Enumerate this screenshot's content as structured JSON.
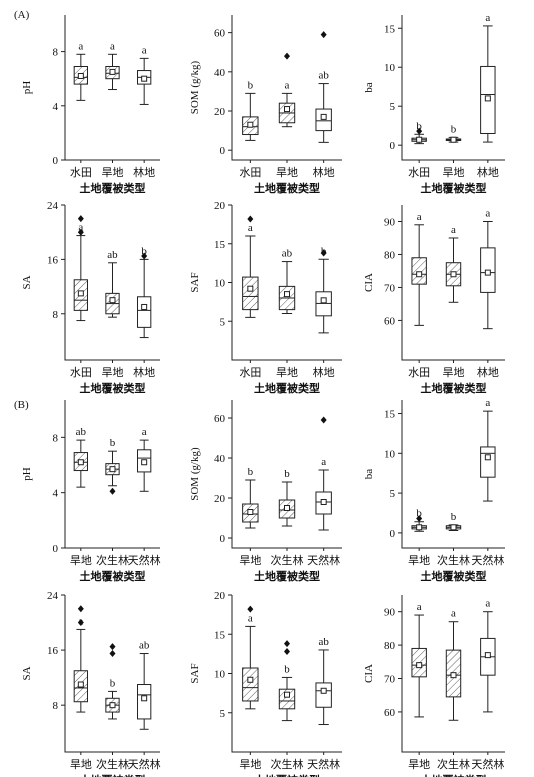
{
  "panel_labels": [
    "(A)",
    "(B)"
  ],
  "chart_data": [
    {
      "type": "box",
      "ylabel": "pH",
      "xlabel": "土地覆被类型",
      "categories": [
        "水田",
        "旱地",
        "林地"
      ],
      "ylim": [
        0,
        10.7
      ],
      "yticks": [
        0,
        4,
        8
      ],
      "boxes": [
        {
          "min": 4.4,
          "q1": 5.6,
          "median": 6.1,
          "q3": 6.9,
          "max": 7.8,
          "mean": 6.2,
          "outliers": [],
          "label": "a",
          "hatch": true
        },
        {
          "min": 5.2,
          "q1": 6.0,
          "median": 6.4,
          "q3": 6.9,
          "max": 7.8,
          "mean": 6.5,
          "outliers": [],
          "label": "a",
          "hatch": true
        },
        {
          "min": 4.1,
          "q1": 5.6,
          "median": 6.1,
          "q3": 6.6,
          "max": 7.5,
          "mean": 6.0,
          "outliers": [],
          "label": "a",
          "hatch": false
        }
      ]
    },
    {
      "type": "box",
      "ylabel": "SOM (g/kg)",
      "xlabel": "土地覆被类型",
      "categories": [
        "水田",
        "旱地",
        "林地"
      ],
      "ylim": [
        -5,
        69
      ],
      "yticks": [
        0,
        20,
        40,
        60
      ],
      "boxes": [
        {
          "min": 5,
          "q1": 8,
          "median": 12,
          "q3": 17,
          "max": 29,
          "mean": 13,
          "outliers": [],
          "label": "b",
          "hatch": true
        },
        {
          "min": 12,
          "q1": 14,
          "median": 19,
          "q3": 24,
          "max": 29,
          "mean": 21,
          "outliers": [
            48
          ],
          "label": "a",
          "hatch": true
        },
        {
          "min": 4,
          "q1": 10,
          "median": 15,
          "q3": 21,
          "max": 34,
          "mean": 17,
          "outliers": [
            59
          ],
          "label": "ab",
          "hatch": false
        }
      ]
    },
    {
      "type": "box",
      "ylabel": "ba",
      "xlabel": "土地覆被类型",
      "categories": [
        "水田",
        "旱地",
        "林地"
      ],
      "ylim": [
        -1.9,
        16.7
      ],
      "yticks": [
        0,
        5,
        10,
        15
      ],
      "boxes": [
        {
          "min": 0.2,
          "q1": 0.5,
          "median": 0.7,
          "q3": 0.9,
          "max": 1.4,
          "mean": 0.7,
          "outliers": [
            1.8
          ],
          "label": "b",
          "hatch": true
        },
        {
          "min": 0.4,
          "q1": 0.6,
          "median": 0.7,
          "q3": 0.8,
          "max": 1.0,
          "mean": 0.7,
          "outliers": [],
          "label": "b",
          "hatch": true
        },
        {
          "min": 0.4,
          "q1": 1.5,
          "median": 6.5,
          "q3": 10.1,
          "max": 15.3,
          "mean": 6.0,
          "outliers": [],
          "label": "a",
          "hatch": false
        }
      ]
    },
    {
      "type": "box",
      "ylabel": "SA",
      "xlabel": "土地覆被类型",
      "categories": [
        "水田",
        "旱地",
        "林地"
      ],
      "ylim": [
        1.2,
        24
      ],
      "yticks": [
        8,
        16,
        24
      ],
      "boxes": [
        {
          "min": 7,
          "q1": 8.5,
          "median": 10,
          "q3": 13,
          "max": 19.5,
          "mean": 11,
          "outliers": [
            20,
            22
          ],
          "label": "a",
          "hatch": true
        },
        {
          "min": 7.5,
          "q1": 8,
          "median": 9.5,
          "q3": 11,
          "max": 15.5,
          "mean": 10,
          "outliers": [],
          "label": "ab",
          "hatch": true
        },
        {
          "min": 4.5,
          "q1": 6,
          "median": 8.5,
          "q3": 10.5,
          "max": 16,
          "mean": 9,
          "outliers": [
            16.5
          ],
          "label": "b",
          "hatch": false
        }
      ]
    },
    {
      "type": "box",
      "ylabel": "SAF",
      "xlabel": "土地覆被类型",
      "categories": [
        "水田",
        "旱地",
        "林地"
      ],
      "ylim": [
        0,
        20
      ],
      "yticks": [
        5,
        10,
        15,
        20
      ],
      "boxes": [
        {
          "min": 5.5,
          "q1": 6.5,
          "median": 8.2,
          "q3": 10.7,
          "max": 16,
          "mean": 9.2,
          "outliers": [
            18.2
          ],
          "label": "a",
          "hatch": true
        },
        {
          "min": 6,
          "q1": 6.5,
          "median": 8,
          "q3": 9.5,
          "max": 12.7,
          "mean": 8.5,
          "outliers": [],
          "label": "ab",
          "hatch": true
        },
        {
          "min": 3.5,
          "q1": 5.7,
          "median": 7.3,
          "q3": 8.8,
          "max": 13,
          "mean": 7.7,
          "outliers": [
            13.8
          ],
          "label": "b",
          "hatch": false
        }
      ]
    },
    {
      "type": "box",
      "ylabel": "CIA",
      "xlabel": "土地覆被类型",
      "categories": [
        "水田",
        "旱地",
        "林地"
      ],
      "ylim": [
        48,
        95
      ],
      "yticks": [
        60,
        70,
        80,
        90
      ],
      "boxes": [
        {
          "min": 58.5,
          "q1": 71,
          "median": 74,
          "q3": 79,
          "max": 89,
          "mean": 74,
          "outliers": [],
          "label": "a",
          "hatch": true
        },
        {
          "min": 65.5,
          "q1": 70.5,
          "median": 74,
          "q3": 77.5,
          "max": 85,
          "mean": 74,
          "outliers": [],
          "label": "a",
          "hatch": true
        },
        {
          "min": 57.5,
          "q1": 68.5,
          "median": 74.5,
          "q3": 82,
          "max": 90,
          "mean": 74.5,
          "outliers": [],
          "label": "a",
          "hatch": false
        }
      ]
    },
    {
      "type": "box",
      "ylabel": "pH",
      "xlabel": "土地覆被类型",
      "categories": [
        "旱地",
        "次生林",
        "天然林"
      ],
      "ylim": [
        0,
        10.7
      ],
      "yticks": [
        0,
        4,
        8
      ],
      "boxes": [
        {
          "min": 4.4,
          "q1": 5.6,
          "median": 6.2,
          "q3": 6.9,
          "max": 7.8,
          "mean": 6.2,
          "outliers": [],
          "label": "ab",
          "hatch": true
        },
        {
          "min": 4.5,
          "q1": 5.3,
          "median": 5.7,
          "q3": 6.1,
          "max": 7.0,
          "mean": 5.7,
          "outliers": [
            4.1
          ],
          "label": "b",
          "hatch": true
        },
        {
          "min": 4.1,
          "q1": 5.5,
          "median": 6.5,
          "q3": 7.1,
          "max": 7.8,
          "mean": 6.2,
          "outliers": [],
          "label": "a",
          "hatch": false
        }
      ]
    },
    {
      "type": "box",
      "ylabel": "SOM (g/kg)",
      "xlabel": "土地覆被类型",
      "categories": [
        "旱地",
        "次生林",
        "天然林"
      ],
      "ylim": [
        -5,
        69
      ],
      "yticks": [
        0,
        20,
        40,
        60
      ],
      "boxes": [
        {
          "min": 5,
          "q1": 8,
          "median": 12,
          "q3": 17,
          "max": 29,
          "mean": 13,
          "outliers": [],
          "label": "b",
          "hatch": true
        },
        {
          "min": 6,
          "q1": 10,
          "median": 14,
          "q3": 19,
          "max": 28,
          "mean": 15,
          "outliers": [],
          "label": "b",
          "hatch": true
        },
        {
          "min": 4,
          "q1": 12,
          "median": 18,
          "q3": 23,
          "max": 34,
          "mean": 18,
          "outliers": [
            59
          ],
          "label": "a",
          "hatch": false
        }
      ]
    },
    {
      "type": "box",
      "ylabel": "ba",
      "xlabel": "土地覆被类型",
      "categories": [
        "旱地",
        "次生林",
        "天然林"
      ],
      "ylim": [
        -1.9,
        16.7
      ],
      "yticks": [
        0,
        5,
        10,
        15
      ],
      "boxes": [
        {
          "min": 0.2,
          "q1": 0.5,
          "median": 0.7,
          "q3": 0.9,
          "max": 1.4,
          "mean": 0.7,
          "outliers": [
            1.8
          ],
          "label": "b",
          "hatch": true
        },
        {
          "min": 0.3,
          "q1": 0.5,
          "median": 0.7,
          "q3": 0.9,
          "max": 1.0,
          "mean": 0.7,
          "outliers": [],
          "label": "b",
          "hatch": true
        },
        {
          "min": 4,
          "q1": 7,
          "median": 10,
          "q3": 10.8,
          "max": 15.3,
          "mean": 9.5,
          "outliers": [],
          "label": "a",
          "hatch": false
        }
      ]
    },
    {
      "type": "box",
      "ylabel": "SA",
      "xlabel": "土地覆被类型",
      "categories": [
        "旱地",
        "次生林",
        "天然林"
      ],
      "ylim": [
        1.2,
        24
      ],
      "yticks": [
        8,
        16,
        24
      ],
      "boxes": [
        {
          "min": 7,
          "q1": 8.5,
          "median": 10.5,
          "q3": 13,
          "max": 19,
          "mean": 11,
          "outliers": [
            20,
            22
          ],
          "label": "a",
          "hatch": true
        },
        {
          "min": 6,
          "q1": 7,
          "median": 8,
          "q3": 9,
          "max": 10,
          "mean": 8,
          "outliers": [
            15.5,
            16.5
          ],
          "label": "b",
          "hatch": true
        },
        {
          "min": 4.5,
          "q1": 6,
          "median": 9.5,
          "q3": 11,
          "max": 15.5,
          "mean": 9,
          "outliers": [],
          "label": "ab",
          "hatch": false
        }
      ]
    },
    {
      "type": "box",
      "ylabel": "SAF",
      "xlabel": "土地覆被类型",
      "categories": [
        "旱地",
        "次生林",
        "天然林"
      ],
      "ylim": [
        0,
        20
      ],
      "yticks": [
        5,
        10,
        15,
        20
      ],
      "boxes": [
        {
          "min": 5.5,
          "q1": 6.5,
          "median": 8.2,
          "q3": 10.7,
          "max": 16,
          "mean": 9.2,
          "outliers": [
            18.2
          ],
          "label": "a",
          "hatch": true
        },
        {
          "min": 4,
          "q1": 5.5,
          "median": 6.5,
          "q3": 8,
          "max": 9.5,
          "mean": 7.3,
          "outliers": [
            12.8,
            13.8
          ],
          "label": "b",
          "hatch": true
        },
        {
          "min": 3.5,
          "q1": 5.7,
          "median": 7.8,
          "q3": 8.8,
          "max": 13,
          "mean": 7.8,
          "outliers": [],
          "label": "ab",
          "hatch": false
        }
      ]
    },
    {
      "type": "box",
      "ylabel": "CIA",
      "xlabel": "土地覆被类型",
      "categories": [
        "旱地",
        "次生林",
        "天然林"
      ],
      "ylim": [
        48,
        95
      ],
      "yticks": [
        60,
        70,
        80,
        90
      ],
      "boxes": [
        {
          "min": 58.5,
          "q1": 70.5,
          "median": 74,
          "q3": 79,
          "max": 89,
          "mean": 74,
          "outliers": [],
          "label": "a",
          "hatch": true
        },
        {
          "min": 57.5,
          "q1": 64.5,
          "median": 71,
          "q3": 78.5,
          "max": 87,
          "mean": 71,
          "outliers": [],
          "label": "a",
          "hatch": true
        },
        {
          "min": 60,
          "q1": 71,
          "median": 76.5,
          "q3": 82,
          "max": 90,
          "mean": 77,
          "outliers": [],
          "label": "a",
          "hatch": false
        }
      ]
    }
  ]
}
